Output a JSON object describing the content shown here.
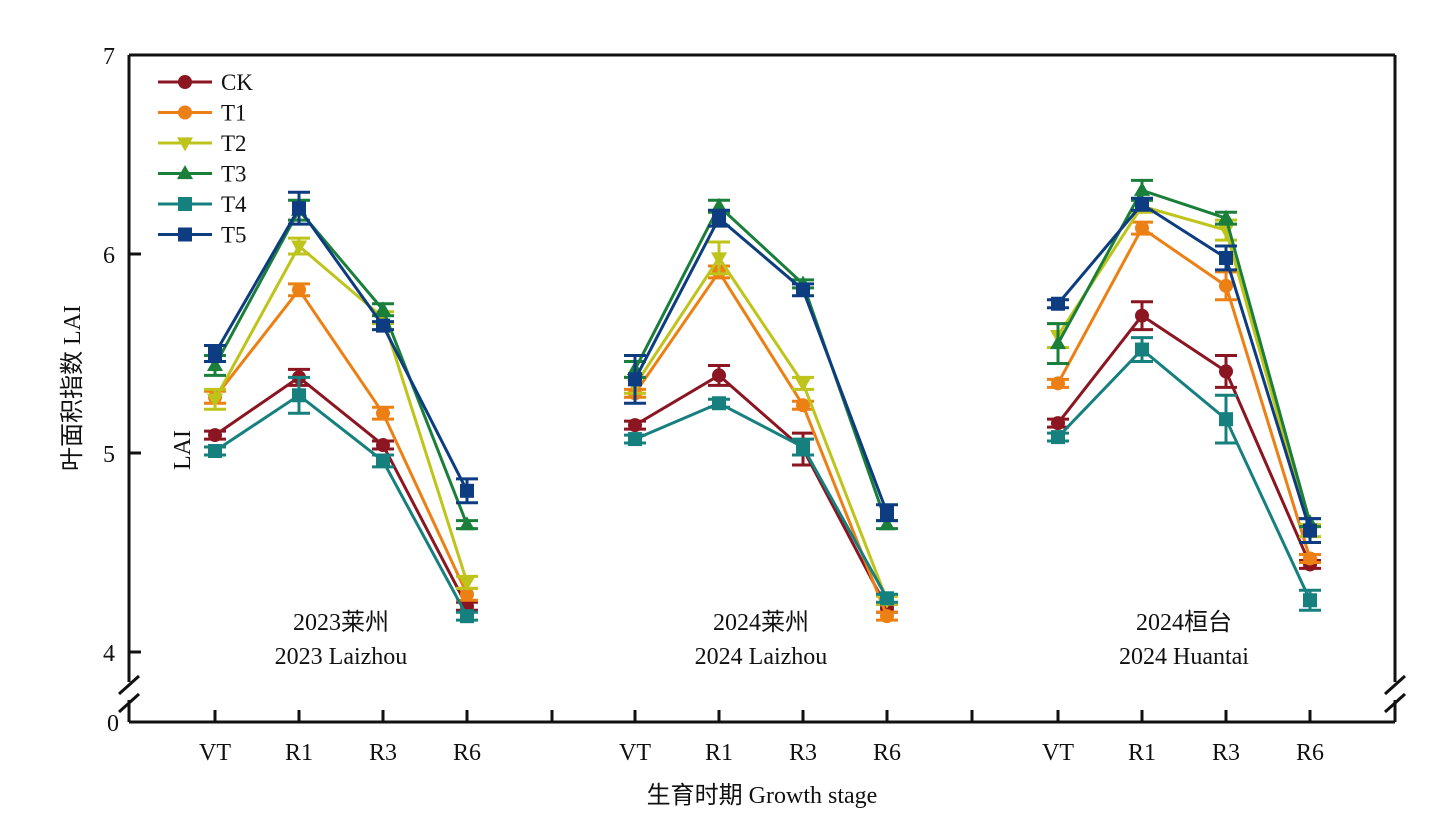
{
  "chart_data": {
    "type": "line",
    "title": "",
    "ylabel": "叶面积指数 LAI",
    "ylabel_inner": "LAI",
    "xlabel": "生育时期 Growth stage",
    "ylim": [
      4,
      7
    ],
    "y_break": true,
    "y_break_bottom_label": "0",
    "yticks": [
      4,
      5,
      6,
      7
    ],
    "grid": false,
    "legend_position": "top-left",
    "stages": [
      "VT",
      "R1",
      "R3",
      "R6"
    ],
    "groups": [
      {
        "label_cn": "2023莱州",
        "label_en": "2023 Laizhou",
        "series": [
          {
            "name": "CK",
            "values": [
              5.09,
              5.38,
              5.04,
              4.23
            ],
            "errors": [
              0.02,
              0.04,
              0.02,
              0.02
            ]
          },
          {
            "name": "T1",
            "values": [
              5.28,
              5.82,
              5.2,
              4.29
            ],
            "errors": [
              0.03,
              0.03,
              0.03,
              0.03
            ]
          },
          {
            "name": "T2",
            "values": [
              5.27,
              6.04,
              5.68,
              4.35
            ],
            "errors": [
              0.05,
              0.04,
              0.03,
              0.03
            ]
          },
          {
            "name": "T3",
            "values": [
              5.44,
              6.22,
              5.72,
              4.64
            ],
            "errors": [
              0.05,
              0.05,
              0.03,
              0.02
            ]
          },
          {
            "name": "T4",
            "values": [
              5.01,
              5.29,
              4.96,
              4.18
            ],
            "errors": [
              0.02,
              0.09,
              0.03,
              0.02
            ]
          },
          {
            "name": "T5",
            "values": [
              5.5,
              6.23,
              5.64,
              4.81
            ],
            "errors": [
              0.04,
              0.08,
              0.02,
              0.06
            ]
          }
        ]
      },
      {
        "label_cn": "2024莱州",
        "label_en": "2024 Laizhou",
        "series": [
          {
            "name": "CK",
            "values": [
              5.14,
              5.39,
              5.02,
              4.22
            ],
            "errors": [
              0.02,
              0.05,
              0.08,
              0.02
            ]
          },
          {
            "name": "T1",
            "values": [
              5.3,
              5.91,
              5.24,
              4.18
            ],
            "errors": [
              0.02,
              0.03,
              0.02,
              0.02
            ]
          },
          {
            "name": "T2",
            "values": [
              5.34,
              5.98,
              5.35,
              4.26
            ],
            "errors": [
              0.04,
              0.08,
              0.03,
              0.02
            ]
          },
          {
            "name": "T3",
            "values": [
              5.42,
              6.24,
              5.85,
              4.64
            ],
            "errors": [
              0.04,
              0.03,
              0.02,
              0.02
            ]
          },
          {
            "name": "T4",
            "values": [
              5.07,
              5.25,
              5.03,
              4.27
            ],
            "errors": [
              0.02,
              0.02,
              0.04,
              0.02
            ]
          },
          {
            "name": "T5",
            "values": [
              5.37,
              6.18,
              5.82,
              4.7
            ],
            "errors": [
              0.12,
              0.04,
              0.03,
              0.04
            ]
          }
        ]
      },
      {
        "label_cn": "2024桓台",
        "label_en": "2024 Huantai",
        "series": [
          {
            "name": "CK",
            "values": [
              5.15,
              5.69,
              5.41,
              4.44
            ],
            "errors": [
              0.02,
              0.07,
              0.08,
              0.02
            ]
          },
          {
            "name": "T1",
            "values": [
              5.35,
              6.13,
              5.84,
              4.47
            ],
            "errors": [
              0.02,
              0.03,
              0.07,
              0.02
            ]
          },
          {
            "name": "T2",
            "values": [
              5.59,
              6.24,
              6.12,
              4.61
            ],
            "errors": [
              0.06,
              0.03,
              0.05,
              0.03
            ]
          },
          {
            "name": "T3",
            "values": [
              5.55,
              6.32,
              6.18,
              4.65
            ],
            "errors": [
              0.1,
              0.05,
              0.03,
              0.02
            ]
          },
          {
            "name": "T4",
            "values": [
              5.08,
              5.52,
              5.17,
              4.26
            ],
            "errors": [
              0.02,
              0.06,
              0.12,
              0.05
            ]
          },
          {
            "name": "T5",
            "values": [
              5.75,
              6.25,
              5.98,
              4.61
            ],
            "errors": [
              0.02,
              0.03,
              0.06,
              0.06
            ]
          }
        ]
      }
    ],
    "legend": [
      {
        "name": "CK",
        "color": "#8b1520",
        "marker": "circle"
      },
      {
        "name": "T1",
        "color": "#ec8014",
        "marker": "circle"
      },
      {
        "name": "T2",
        "color": "#bfc41b",
        "marker": "triangle-down"
      },
      {
        "name": "T3",
        "color": "#1a7f3a",
        "marker": "triangle-up"
      },
      {
        "name": "T4",
        "color": "#16807f",
        "marker": "square"
      },
      {
        "name": "T5",
        "color": "#0d3d80",
        "marker": "square"
      }
    ]
  }
}
